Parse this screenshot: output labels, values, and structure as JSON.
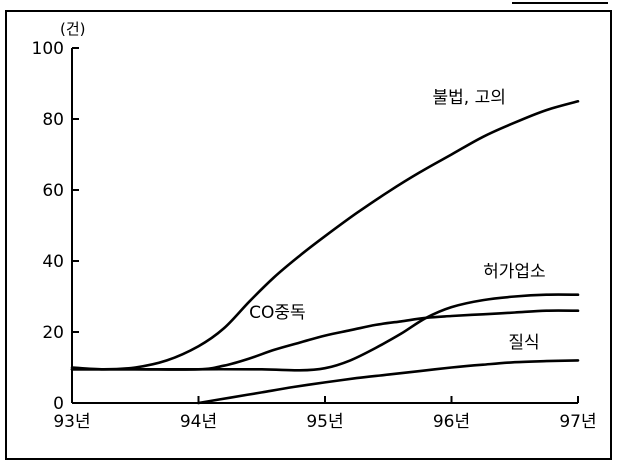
{
  "chart_data": {
    "type": "line",
    "unit_label": "(건)",
    "categories": [
      "93년",
      "94년",
      "95년",
      "96년",
      "97년"
    ],
    "ylim": [
      0,
      100
    ],
    "yticks": [
      0,
      20,
      40,
      60,
      80,
      100
    ],
    "grid": false,
    "series": [
      {
        "name": "불법, 고의",
        "x": [
          93.0,
          93.25,
          93.5,
          93.75,
          94.0,
          94.2,
          94.4,
          94.6,
          94.8,
          95.0,
          95.25,
          95.5,
          95.75,
          96.0,
          96.25,
          96.5,
          96.75,
          97.0
        ],
        "values": [
          10,
          9.5,
          10,
          12,
          16,
          21,
          28.5,
          35.5,
          41.5,
          47,
          53.5,
          59.5,
          65,
          70,
          75,
          79,
          82.5,
          85
        ]
      },
      {
        "name": "허가업소",
        "x": [
          93.0,
          93.5,
          94.0,
          94.5,
          94.8,
          95.0,
          95.2,
          95.4,
          95.6,
          95.8,
          96.0,
          96.25,
          96.5,
          96.75,
          97.0
        ],
        "values": [
          9.5,
          9.5,
          9.5,
          9.5,
          9.2,
          9.8,
          12,
          15.5,
          19.5,
          24,
          27,
          29,
          30,
          30.5,
          30.5
        ]
      },
      {
        "name": "CO중독",
        "x": [
          93.0,
          93.5,
          94.0,
          94.2,
          94.4,
          94.6,
          94.8,
          95.0,
          95.2,
          95.4,
          95.6,
          95.8,
          96.0,
          96.25,
          96.5,
          96.75,
          97.0
        ],
        "values": [
          9.5,
          9.5,
          9.5,
          10.5,
          12.5,
          15,
          17,
          19,
          20.5,
          22,
          23,
          24,
          24.5,
          25,
          25.5,
          26,
          26
        ]
      },
      {
        "name": "질식",
        "x": [
          94.0,
          94.25,
          94.5,
          94.75,
          95.0,
          95.25,
          95.5,
          95.75,
          96.0,
          96.25,
          96.5,
          96.75,
          97.0
        ],
        "values": [
          0,
          1.5,
          3,
          4.5,
          5.8,
          7,
          8,
          9,
          10,
          10.8,
          11.5,
          11.8,
          12
        ]
      }
    ]
  }
}
